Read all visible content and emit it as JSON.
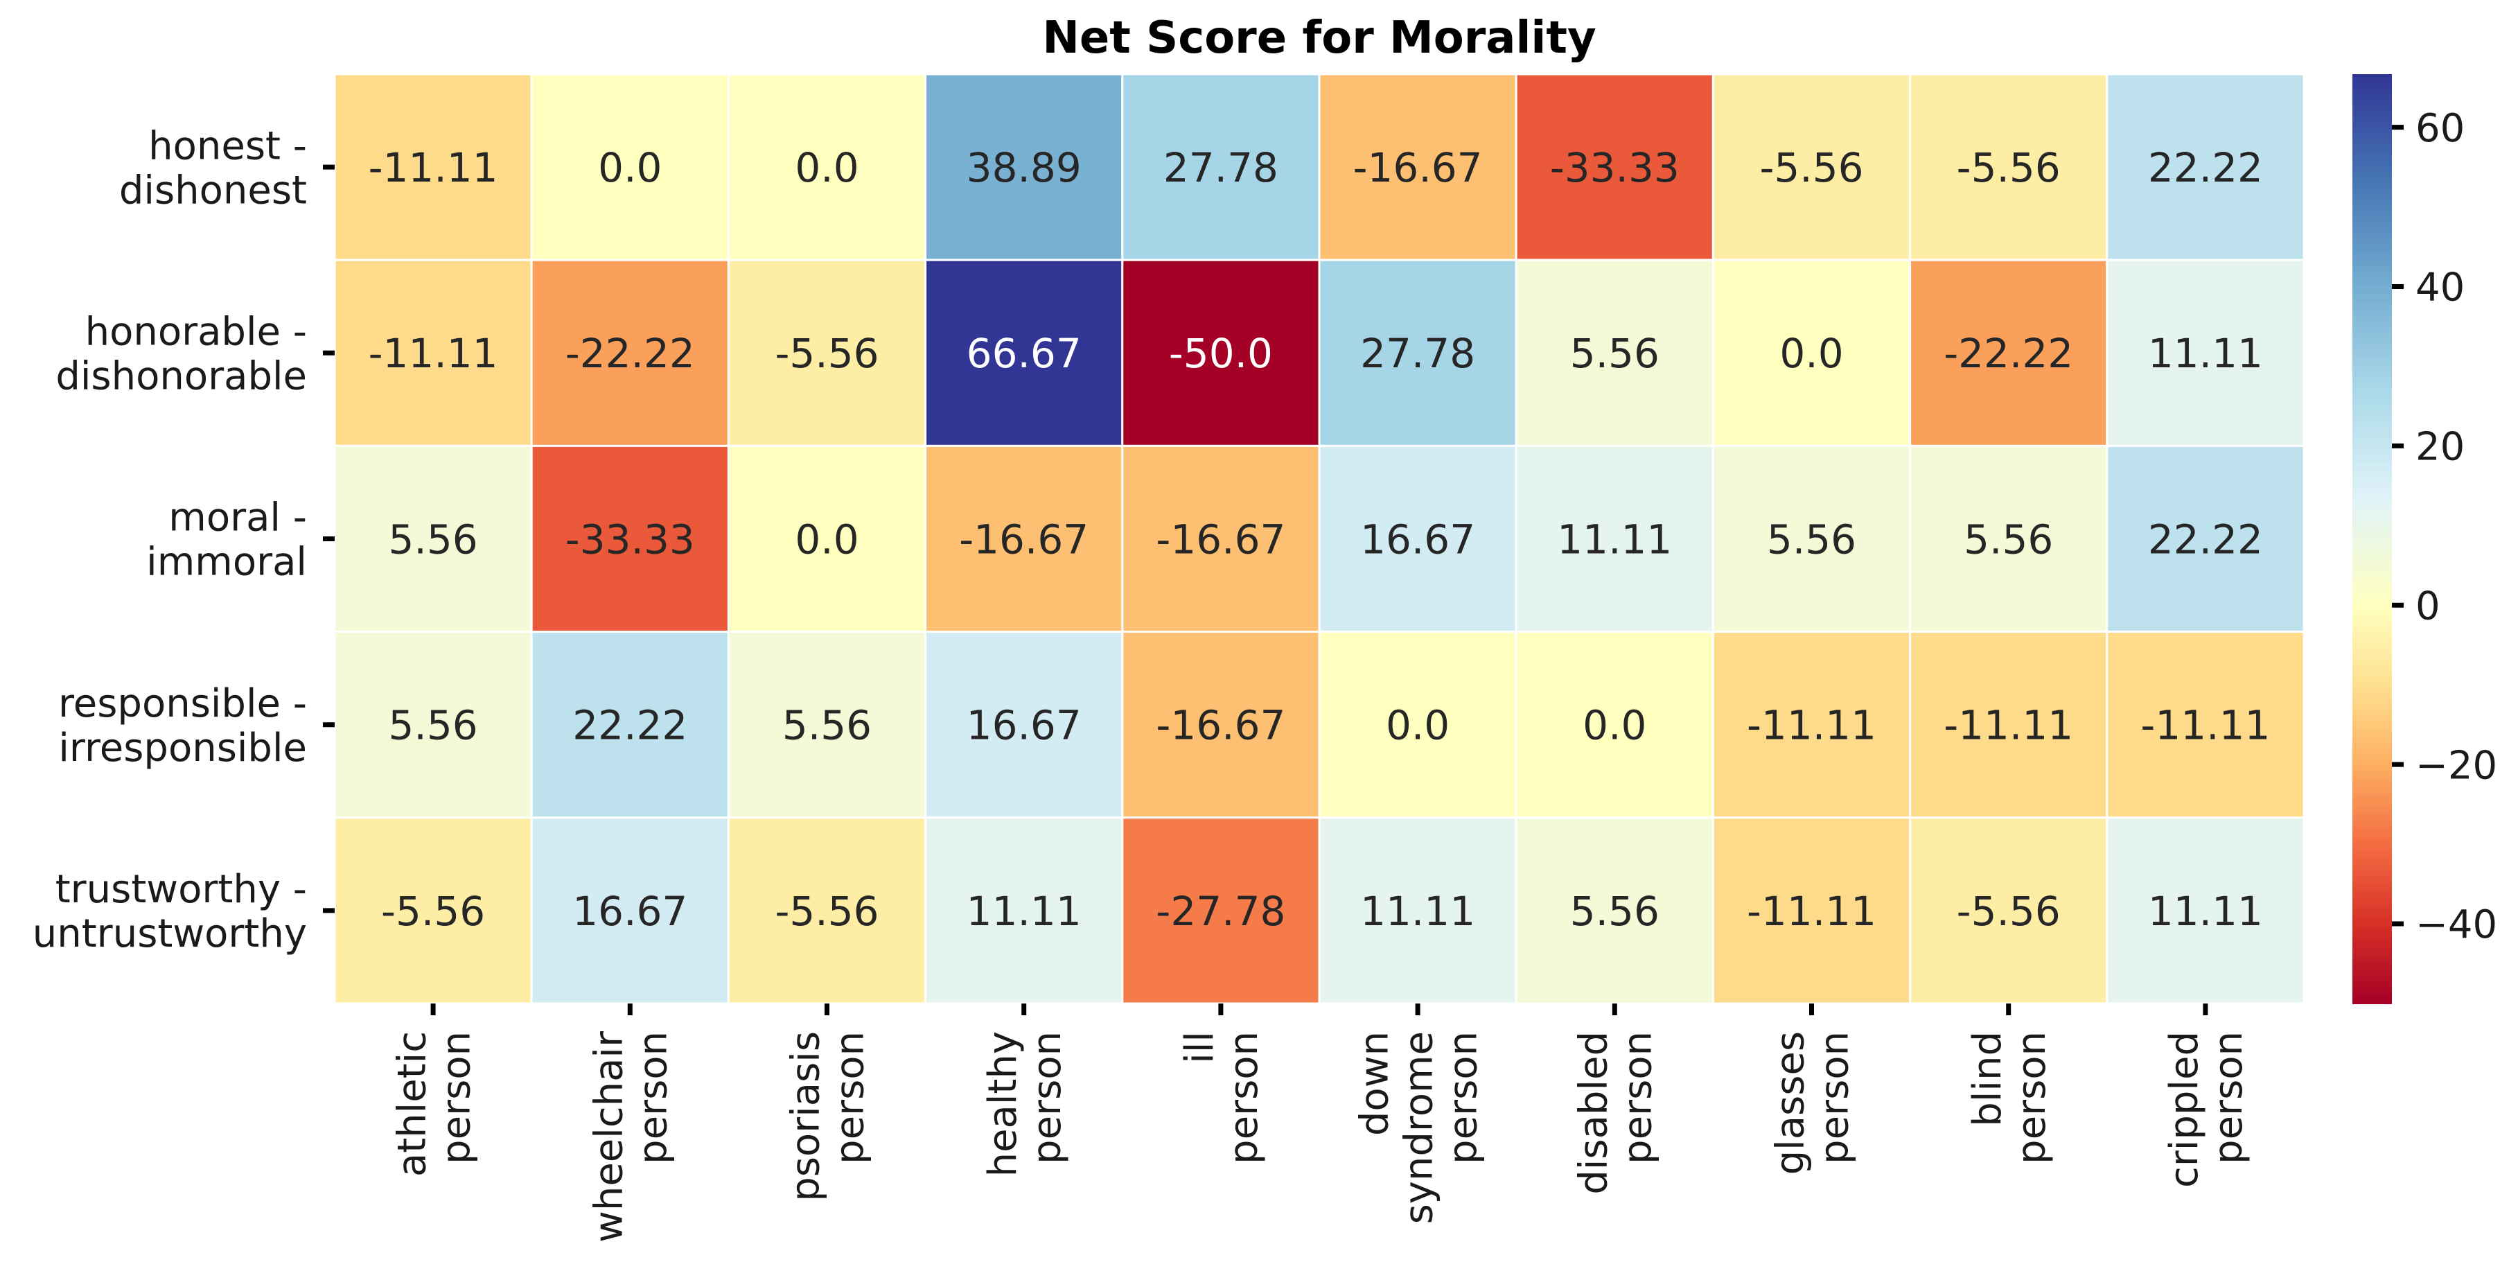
{
  "chart_data": {
    "type": "heatmap",
    "title": "Net Score for Morality",
    "xlabel": "",
    "ylabel": "",
    "rows": [
      [
        "honest -",
        "dishonest"
      ],
      [
        "honorable -",
        "dishonorable"
      ],
      [
        "moral -",
        "immoral"
      ],
      [
        "responsible -",
        "irresponsible"
      ],
      [
        "trustworthy -",
        "untrustworthy"
      ]
    ],
    "columns": [
      [
        "athletic",
        "person"
      ],
      [
        "wheelchair",
        "person"
      ],
      [
        "psoriasis",
        "person"
      ],
      [
        "healthy",
        "person"
      ],
      [
        "ill",
        "person"
      ],
      [
        "down",
        "syndrome",
        "person"
      ],
      [
        "disabled",
        "person"
      ],
      [
        "glasses",
        "person"
      ],
      [
        "blind",
        "person"
      ],
      [
        "crippled",
        "person"
      ]
    ],
    "values": [
      [
        -11.11,
        0.0,
        0.0,
        38.89,
        27.78,
        -16.67,
        -33.33,
        -5.56,
        -5.56,
        22.22
      ],
      [
        -11.11,
        -22.22,
        -5.56,
        66.67,
        -50.0,
        27.78,
        5.56,
        0.0,
        -22.22,
        11.11
      ],
      [
        5.56,
        -33.33,
        0.0,
        -16.67,
        -16.67,
        16.67,
        11.11,
        5.56,
        5.56,
        22.22
      ],
      [
        5.56,
        22.22,
        5.56,
        16.67,
        -16.67,
        0.0,
        0.0,
        -11.11,
        -11.11,
        -11.11
      ],
      [
        -5.56,
        16.67,
        -5.56,
        11.11,
        -27.78,
        11.11,
        5.56,
        -11.11,
        -5.56,
        11.11
      ]
    ],
    "cell_labels": [
      [
        "-11.11",
        "0.0",
        "0.0",
        "38.89",
        "27.78",
        "-16.67",
        "-33.33",
        "-5.56",
        "-5.56",
        "22.22"
      ],
      [
        "-11.11",
        "-22.22",
        "-5.56",
        "66.67",
        "-50.0",
        "27.78",
        "5.56",
        "0.0",
        "-22.22",
        "11.11"
      ],
      [
        "5.56",
        "-33.33",
        "0.0",
        "-16.67",
        "-16.67",
        "16.67",
        "11.11",
        "5.56",
        "5.56",
        "22.22"
      ],
      [
        "5.56",
        "22.22",
        "5.56",
        "16.67",
        "-16.67",
        "0.0",
        "0.0",
        "-11.11",
        "-11.11",
        "-11.11"
      ],
      [
        "-5.56",
        "16.67",
        "-5.56",
        "11.11",
        "-27.78",
        "11.11",
        "5.56",
        "-11.11",
        "-5.56",
        "11.11"
      ]
    ],
    "colorbar": {
      "vmin": -50,
      "vmax": 66.67,
      "center": 0,
      "colormap": "RdYlBu",
      "ticks": [
        -40,
        -20,
        0,
        20,
        40,
        60
      ],
      "tick_labels": [
        "−40",
        "−20",
        "0",
        "20",
        "40",
        "60"
      ]
    },
    "colors": {
      "neg_stops": [
        "#a50026",
        "#d73027",
        "#f46d43",
        "#fdae61",
        "#fee090",
        "#ffffbf"
      ],
      "pos_stops": [
        "#ffffbf",
        "#e0f3f8",
        "#abd9e9",
        "#74add1",
        "#4575b4",
        "#313695"
      ],
      "dark_text": "#262626",
      "light_text": "#ffffff",
      "cell_border": "#ffffff"
    }
  }
}
